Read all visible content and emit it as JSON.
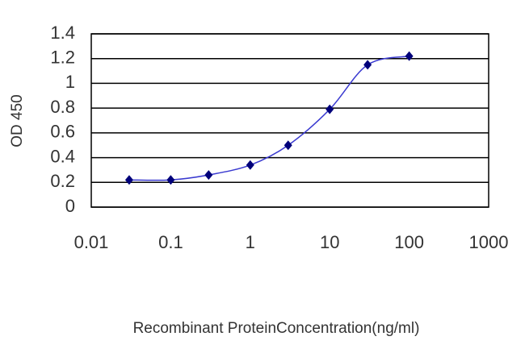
{
  "chart_data": {
    "type": "line",
    "x_label": "Recombinant ProteinConcentration(ng/ml)",
    "y_label": "OD 450",
    "x": [
      0.03,
      0.1,
      0.3,
      1,
      3,
      10,
      30,
      100
    ],
    "series": [
      {
        "color": "#3a3ad0",
        "marker_color": "#00007a",
        "values": [
          0.22,
          0.22,
          0.26,
          0.34,
          0.5,
          0.79,
          1.15,
          1.22
        ]
      }
    ],
    "xlim": [
      0.01,
      1000
    ],
    "xticks": [
      0.01,
      0.1,
      1,
      10,
      100,
      1000
    ],
    "xscale": "log",
    "ylim": [
      0,
      1.4
    ],
    "yticks": [
      0,
      0.2,
      0.4,
      0.6,
      0.8,
      1,
      1.2,
      1.4
    ],
    "grid": true
  }
}
